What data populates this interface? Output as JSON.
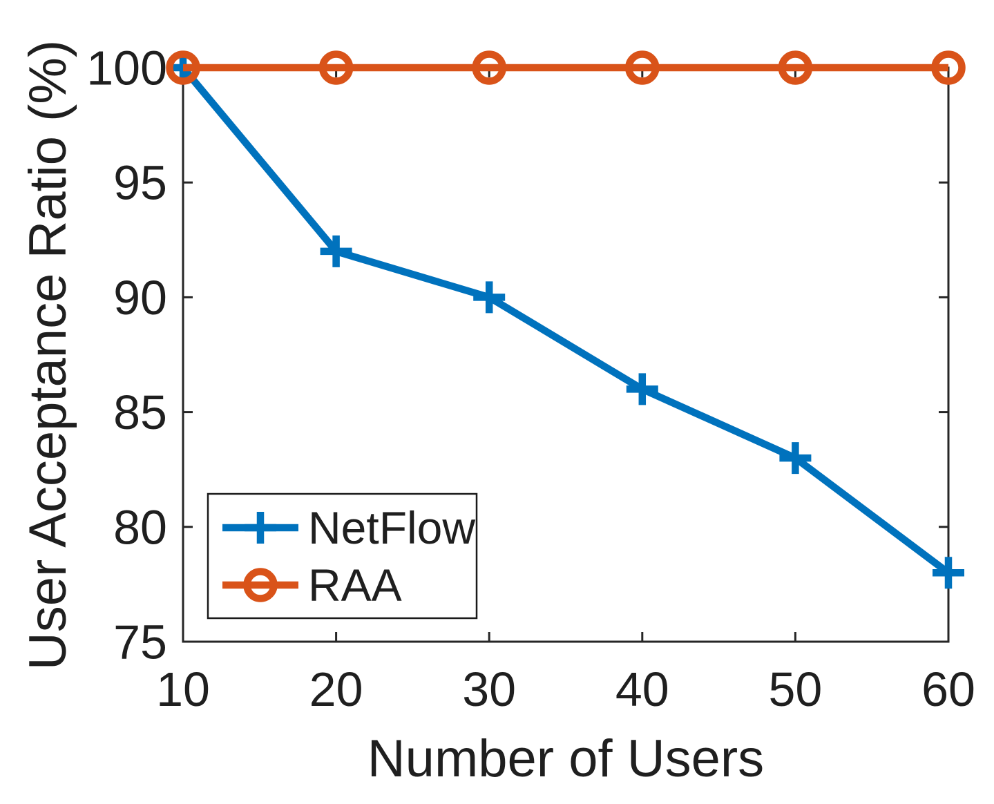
{
  "figure": {
    "background": "#ffffff"
  },
  "chart_data": {
    "type": "line",
    "title": "",
    "xlabel": "Number of Users",
    "ylabel": "User Acceptance Ratio (%)",
    "x": [
      10,
      20,
      30,
      40,
      50,
      60
    ],
    "xlim": [
      10,
      60
    ],
    "ylim": [
      75,
      100
    ],
    "x_ticks": [
      10,
      20,
      30,
      40,
      50,
      60
    ],
    "y_ticks": [
      75,
      80,
      85,
      90,
      95,
      100
    ],
    "grid": false,
    "box": true,
    "legend_position": "lower-left",
    "series": [
      {
        "name": "NetFlow",
        "color": "#0072BD",
        "marker": "plus",
        "values": [
          100,
          92,
          90,
          86,
          83,
          78
        ]
      },
      {
        "name": "RAA",
        "color": "#D95319",
        "marker": "circle",
        "values": [
          100,
          100,
          100,
          100,
          100,
          100
        ]
      }
    ],
    "colors": {
      "axis": "#262626",
      "text": "#1f1f1f",
      "legend_border": "#1a1a1a",
      "legend_background": "#ffffff"
    }
  }
}
